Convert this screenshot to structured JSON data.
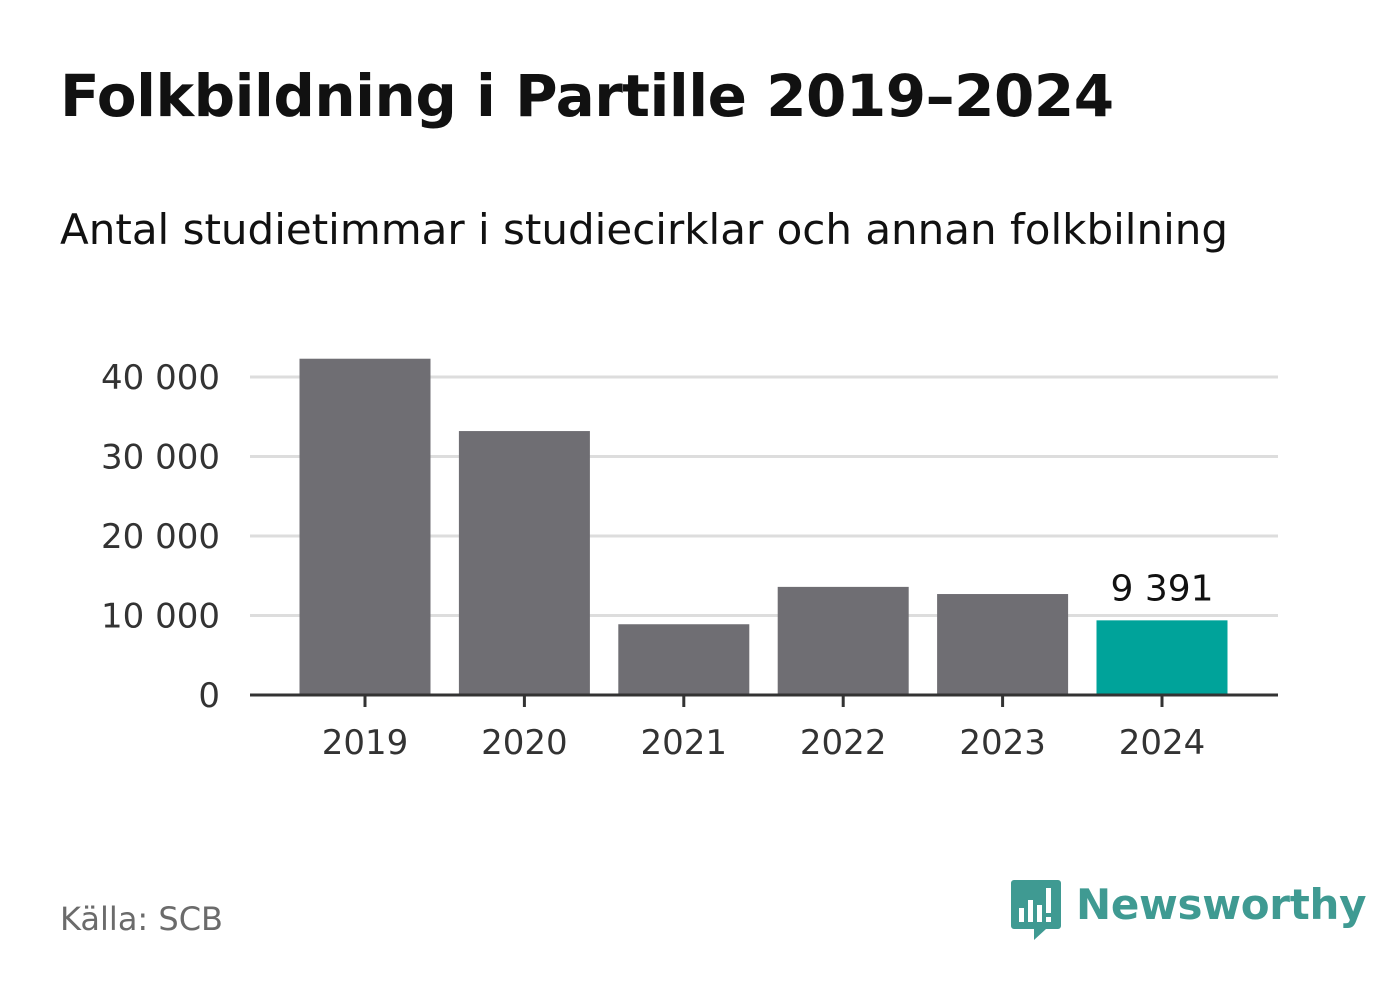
{
  "header": {
    "title": "Folkbildning i Partille 2019–2024",
    "subtitle": "Antal studietimmar i studiecirklar och annan folkbilning"
  },
  "footer": {
    "source": "Källa: SCB",
    "brand_name": "Newsworthy",
    "brand_icon": "newsworthy-logo-icon"
  },
  "colors": {
    "bar": "#6f6e73",
    "highlight": "#00a39a",
    "grid": "#dddddd",
    "axis": "#333333",
    "brand": "#3f9a92"
  },
  "chart_data": {
    "type": "bar",
    "title": "Folkbildning i Partille 2019–2024",
    "subtitle": "Antal studietimmar i studiecirklar och annan folkbilning",
    "categories": [
      "2019",
      "2020",
      "2021",
      "2022",
      "2023",
      "2024"
    ],
    "values": [
      42300,
      33200,
      8900,
      13600,
      12700,
      9391
    ],
    "highlight_index": 5,
    "data_labels": [
      {
        "index": 5,
        "text": "9 391"
      }
    ],
    "xlabel": "",
    "ylabel": "",
    "ylim": [
      0,
      42300
    ],
    "yticks": [
      0,
      10000,
      20000,
      30000,
      40000
    ],
    "ytick_labels": [
      "0",
      "10 000",
      "20 000",
      "30 000",
      "40 000"
    ],
    "grid": true,
    "legend": "none"
  }
}
